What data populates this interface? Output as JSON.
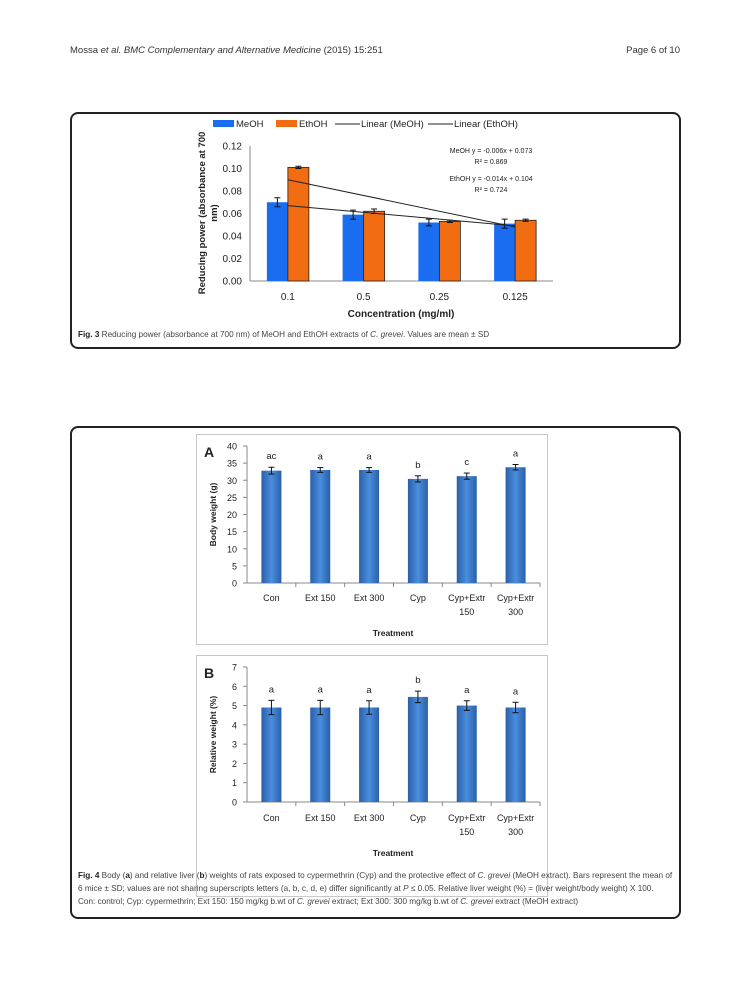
{
  "header": {
    "left_authors": "Mossa ",
    "left_etal": "et al.",
    "left_journal": " BMC Complementary and Alternative Medicine",
    "left_year": " (2015) 15:251",
    "right": "Page 6 of 10"
  },
  "fig3": {
    "caption_label": "Fig. 3",
    "caption_text": " Reducing power (absorbance at 700 nm) of MeOH and EthOH extracts of ",
    "caption_species": "C. grevei",
    "caption_end": ". Values are mean ± SD"
  },
  "fig4": {
    "caption_label": "Fig. 4",
    "caption_p1": " Body (",
    "caption_a": "a",
    "caption_p2": ") and relative liver (",
    "caption_b": "b",
    "caption_p3": ") weights of rats exposed to cypermethrin (Cyp) and the protective effect of ",
    "caption_species1": "C. grevei",
    "caption_p4": " (MeOH extract). Bars represent the mean of 6 mice ± SD; values are not sharing superscripts letters (a, b, c, d, e) differ significantly at ",
    "caption_p": "P",
    "caption_p5": " ≤ 0.05. Relative liver weight (%) = (liver weight/body weight) X 100. Con: control; Cyp: cypermethrin; Ext 150: 150 mg/kg b.wt of ",
    "caption_species2": "C. grevei",
    "caption_p6": " extract; Ext 300: 300 mg/kg b.wt of ",
    "caption_species3": "C. grevei",
    "caption_p7": " extract (MeOH extract)"
  },
  "chart_data": [
    {
      "id": "fig3",
      "type": "bar",
      "title": "",
      "xlabel": "Concentration (mg/ml)",
      "ylabel": "Reducing power (absorbance at 700 nm)",
      "ylabel_lines": [
        "Reducing power (absorbance at 700",
        "nm)"
      ],
      "ylim": [
        0,
        0.12
      ],
      "yticks": [
        "0.00",
        "0.02",
        "0.04",
        "0.06",
        "0.08",
        "0.10",
        "0.12"
      ],
      "categories": [
        "0.1",
        "0.5",
        "0.25",
        "0.125"
      ],
      "legend_position": "top",
      "series": [
        {
          "name": "MeOH",
          "color": "#1a6cf0",
          "values": [
            0.07,
            0.059,
            0.052,
            0.051
          ],
          "errors": [
            0.004,
            0.004,
            0.003,
            0.004
          ]
        },
        {
          "name": "EthOH",
          "color": "#f26c12",
          "values": [
            0.101,
            0.062,
            0.053,
            0.054
          ],
          "errors": [
            0.001,
            0.002,
            0.001,
            0.001
          ]
        }
      ],
      "trendlines": [
        {
          "name": "Linear (MeOH)",
          "slope": -0.006,
          "intercept": 0.073,
          "equation_label": "MeOH  y = -0.006x + 0.073",
          "r2_label": "R² = 0.869"
        },
        {
          "name": "Linear (EthOH)",
          "slope": -0.014,
          "intercept": 0.104,
          "equation_label": "EthOH y = -0.014x + 0.104",
          "r2_label": "R² = 0.724"
        }
      ]
    },
    {
      "id": "fig4a",
      "type": "bar",
      "panel_label": "A",
      "xlabel": "Treatment",
      "ylabel": "Body weight (g)",
      "ylim": [
        0,
        40
      ],
      "yticks": [
        "0",
        "5",
        "10",
        "15",
        "20",
        "25",
        "30",
        "35",
        "40"
      ],
      "categories": [
        [
          "Con"
        ],
        [
          "Ext 150"
        ],
        [
          "Ext 300"
        ],
        [
          "Cyp"
        ],
        [
          "Cyp+Extr",
          "150"
        ],
        [
          "Cyp+Extr",
          "300"
        ]
      ],
      "series": [
        {
          "name": "Body weight",
          "color": "#3d7fd0",
          "values": [
            32.8,
            33.0,
            33.0,
            30.4,
            31.2,
            33.8
          ],
          "errors": [
            1.0,
            0.7,
            0.7,
            0.9,
            0.9,
            0.8
          ]
        }
      ],
      "significance_letters": [
        "ac",
        "a",
        "a",
        "b",
        "c",
        "a"
      ]
    },
    {
      "id": "fig4b",
      "type": "bar",
      "panel_label": "B",
      "xlabel": "Treatment",
      "ylabel": "Relative weight (%)",
      "ylim": [
        0,
        7
      ],
      "yticks": [
        "0",
        "1",
        "2",
        "3",
        "4",
        "5",
        "6",
        "7"
      ],
      "categories": [
        [
          "Con"
        ],
        [
          "Ext 150"
        ],
        [
          "Ext 300"
        ],
        [
          "Cyp"
        ],
        [
          "Cyp+Extr",
          "150"
        ],
        [
          "Cyp+Extr",
          "300"
        ]
      ],
      "series": [
        {
          "name": "Relative weight",
          "color": "#3d7fd0",
          "values": [
            4.9,
            4.9,
            4.9,
            5.45,
            5.0,
            4.9
          ],
          "errors": [
            0.37,
            0.37,
            0.35,
            0.3,
            0.25,
            0.27
          ]
        }
      ],
      "significance_letters": [
        "a",
        "a",
        "a",
        "b",
        "a",
        "a"
      ]
    }
  ]
}
